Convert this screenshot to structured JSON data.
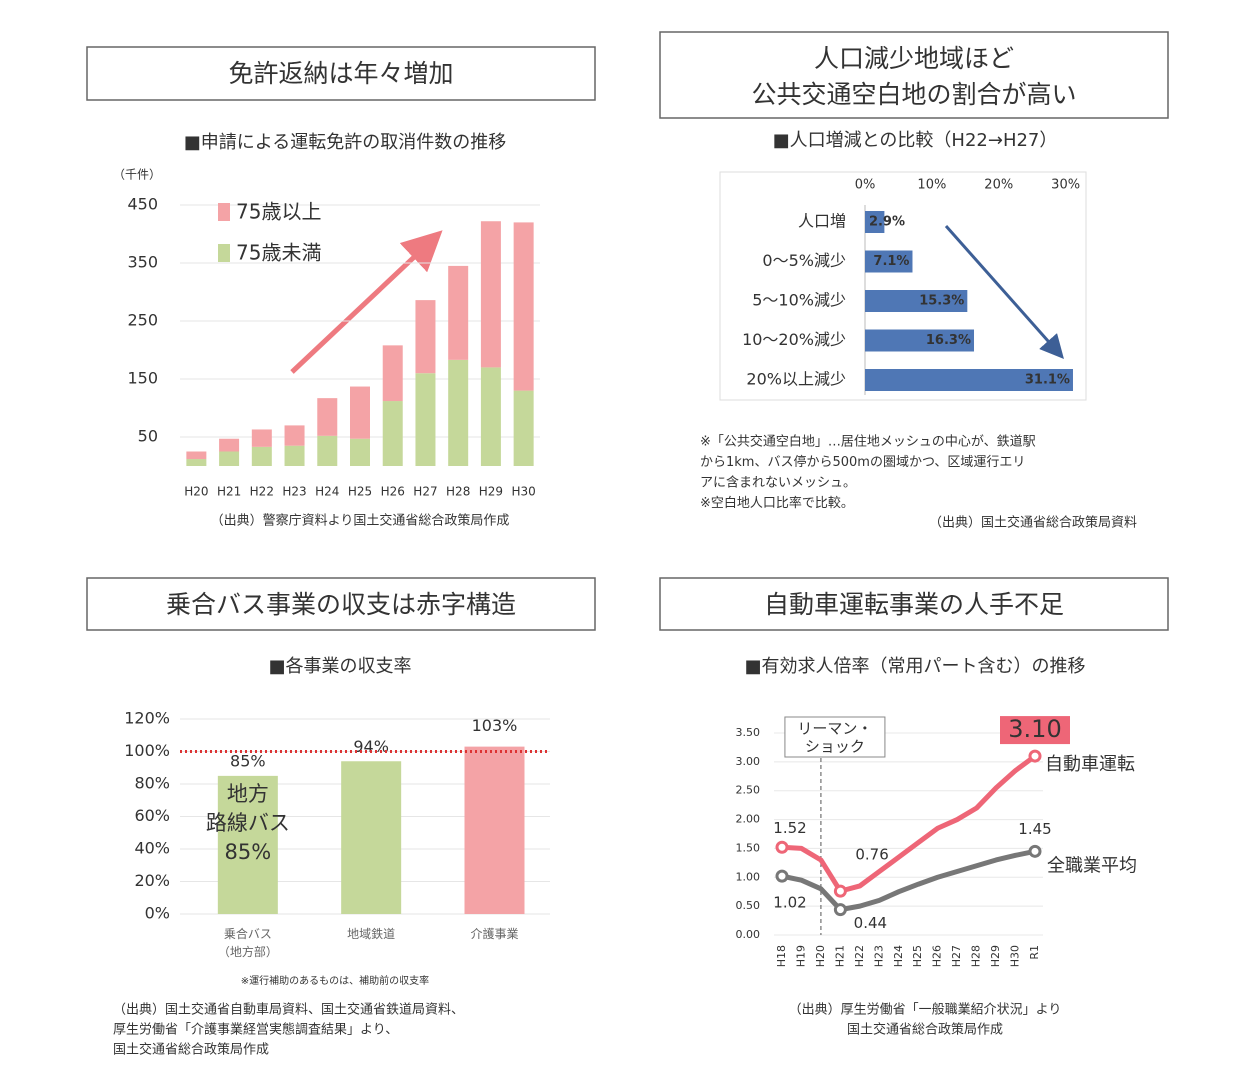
{
  "chart_data": [
    {
      "type": "stacked-bar",
      "heading": [
        "免許返納は年々増加"
      ],
      "title": "■申請による運転免許の取消件数の推移",
      "unit": "（千件）",
      "categories": [
        "H20",
        "H21",
        "H22",
        "H23",
        "H24",
        "H25",
        "H26",
        "H27",
        "H28",
        "H29",
        "H30"
      ],
      "series": [
        {
          "name": "75歳以上",
          "color": "#f4a3a6",
          "values": [
            13,
            22,
            30,
            35,
            65,
            90,
            96,
            126,
            162,
            252,
            290
          ]
        },
        {
          "name": "75歳未満",
          "color": "#c5d89a",
          "values": [
            12,
            25,
            33,
            35,
            52,
            47,
            112,
            160,
            183,
            170,
            130
          ]
        }
      ],
      "ylim": [
        0,
        450
      ],
      "yticks": [
        50,
        150,
        250,
        350,
        450
      ],
      "grid": true,
      "source": [
        "（出典）警察庁資料より国土交通省総合政策局作成"
      ]
    },
    {
      "type": "hbar",
      "heading": [
        "人口減少地域ほど",
        "公共交通空白地の割合が高い"
      ],
      "title": "■人口増減との比較（H22→H27）",
      "categories": [
        "人口増",
        "0～5%減少",
        "5～10%減少",
        "10～20%減少",
        "20%以上減少"
      ],
      "values": [
        2.9,
        7.1,
        15.3,
        16.3,
        31.1
      ],
      "value_labels": [
        "2.9%",
        "7.1%",
        "15.3%",
        "16.3%",
        "31.1%"
      ],
      "color": "#4f77b5",
      "xlim": [
        0,
        32
      ],
      "xticks": [
        {
          "value": 0,
          "label": "0%"
        },
        {
          "value": 10,
          "label": "10%"
        },
        {
          "value": 20,
          "label": "20%"
        },
        {
          "value": 30,
          "label": "30%"
        }
      ],
      "notes": [
        "※「公共交通空白地」…居住地メッシュの中心が、鉄道駅",
        "から1km、バス停から500mの圏域かつ、区域運行エリ",
        "アに含まれないメッシュ。",
        "※空白地人口比率で比較。"
      ],
      "source": [
        "（出典）国土交通省総合政策局資料"
      ]
    },
    {
      "type": "bar",
      "heading": [
        "乗合バス事業の収支は赤字構造"
      ],
      "title": "■各事業の収支率",
      "categories": [
        "乗合バス（地方部）",
        "地域鉄道",
        "介護事業"
      ],
      "values": [
        85,
        94,
        103
      ],
      "value_labels": [
        "85%",
        "94%",
        "103%"
      ],
      "colors": [
        "#c5d89a",
        "#c5d89a",
        "#f4a3a6"
      ],
      "ylim": [
        0,
        120
      ],
      "yticks": [
        {
          "value": 0,
          "label": "0%"
        },
        {
          "value": 20,
          "label": "20%"
        },
        {
          "value": 40,
          "label": "40%"
        },
        {
          "value": 60,
          "label": "60%"
        },
        {
          "value": 80,
          "label": "80%"
        },
        {
          "value": 100,
          "label": "100%"
        },
        {
          "value": 120,
          "label": "120%"
        }
      ],
      "grid": true,
      "reference_line": 100,
      "annotation": [
        "地方",
        "路線バス",
        "85%"
      ],
      "notes": [
        "※運行補助のあるものは、補助前の収支率"
      ],
      "source": [
        "（出典）国土交通省自動車局資料、国土交通省鉄道局資料、",
        "厚生労働省「介護事業経営実態調査結果」より、",
        "国土交通省総合政策局作成"
      ]
    },
    {
      "type": "line",
      "heading": [
        "自動車運転事業の人手不足"
      ],
      "title": "■有効求人倍率（常用パート含む）の推移",
      "categories": [
        "H18",
        "H19",
        "H20",
        "H21",
        "H22",
        "H23",
        "H24",
        "H25",
        "H26",
        "H27",
        "H28",
        "H29",
        "H30",
        "R1"
      ],
      "series": [
        {
          "name": "自動車運転",
          "color": "#ee6677",
          "values": [
            1.52,
            1.5,
            1.3,
            0.76,
            0.85,
            1.1,
            1.35,
            1.6,
            1.85,
            2.0,
            2.2,
            2.55,
            2.85,
            3.1
          ],
          "value_labels": [
            "1.52",
            null,
            null,
            "0.76",
            null,
            null,
            null,
            null,
            null,
            null,
            null,
            null,
            null,
            "3.10"
          ]
        },
        {
          "name": "全職業平均",
          "color": "#777777",
          "values": [
            1.02,
            0.95,
            0.8,
            0.44,
            0.5,
            0.6,
            0.75,
            0.88,
            1.0,
            1.1,
            1.2,
            1.3,
            1.38,
            1.45
          ],
          "value_labels": [
            "1.02",
            null,
            null,
            "0.44",
            null,
            null,
            null,
            null,
            null,
            null,
            null,
            null,
            null,
            "1.45"
          ]
        }
      ],
      "ylim": [
        0,
        3.5
      ],
      "yticks": [
        {
          "value": 0,
          "label": "0.00"
        },
        {
          "value": 0.5,
          "label": "0.50"
        },
        {
          "value": 1,
          "label": "1.00"
        },
        {
          "value": 1.5,
          "label": "1.50"
        },
        {
          "value": 2,
          "label": "2.00"
        },
        {
          "value": 2.5,
          "label": "2.50"
        },
        {
          "value": 3,
          "label": "3.00"
        },
        {
          "value": 3.5,
          "label": "3.50"
        }
      ],
      "grid": true,
      "annotation": {
        "text": [
          "リーマン・",
          "ショック"
        ],
        "x": "H20"
      },
      "source": [
        "（出典）厚生労働省「一般職業紹介状況」より",
        "国土交通省総合政策局作成"
      ]
    }
  ]
}
